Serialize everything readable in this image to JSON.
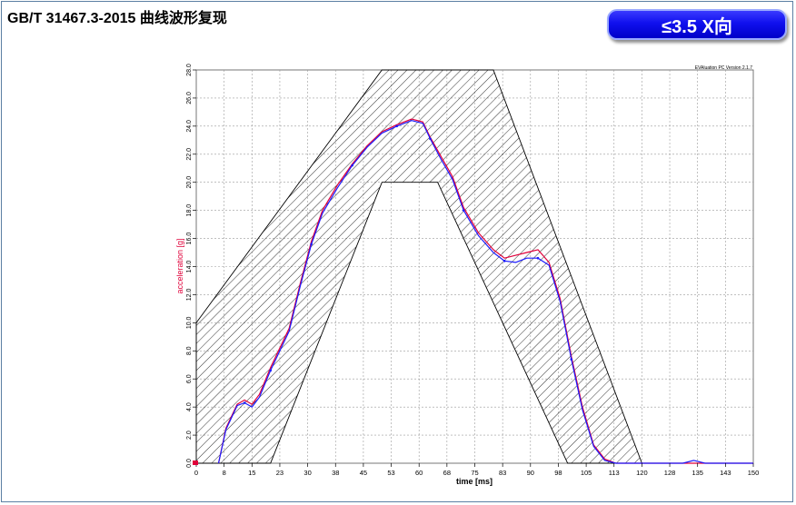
{
  "header": {
    "title": "GB/T 31467.3-2015 曲线波形复现",
    "badge": "≤3.5 X向"
  },
  "colors": {
    "frame_border": "#5b7fa3",
    "badge_blue": "#1010ee",
    "series_red": "#e0003a",
    "series_blue": "#1a1aff",
    "ylabel_red": "#e0003a"
  },
  "chart_data": {
    "type": "line",
    "title": "",
    "xlabel": "time [ms]",
    "ylabel": "acceleration [g]",
    "version_text": "EVAluation PC Version 2.1.7",
    "xlim": [
      0,
      150
    ],
    "ylim": [
      0,
      28
    ],
    "grid": true,
    "x_tick_values": [
      0,
      7.5,
      15,
      22.5,
      30,
      37.5,
      45,
      52.5,
      60,
      67.5,
      75,
      82.5,
      90,
      97.5,
      105,
      112.5,
      120,
      127.5,
      135,
      142.5,
      150
    ],
    "x_tick_labels": [
      "0",
      "8",
      "15",
      "23",
      "30",
      "38",
      "45",
      "53",
      "60",
      "68",
      "75",
      "83",
      "90",
      "98",
      "105",
      "113",
      "120",
      "128",
      "135",
      "143",
      "150"
    ],
    "y_tick_values": [
      0,
      2,
      4,
      6,
      8,
      10,
      12,
      14,
      16,
      18,
      20,
      22,
      24,
      26,
      28
    ],
    "y_tick_labels": [
      "0.0",
      "2.0",
      "4.0",
      "6.0",
      "8.0",
      "10.0",
      "12.0",
      "14.0",
      "16.0",
      "18.0",
      "20.0",
      "22.0",
      "24.0",
      "26.0",
      "28.0"
    ],
    "corridor_upper": [
      [
        0,
        10
      ],
      [
        50,
        28
      ],
      [
        80,
        28
      ],
      [
        120,
        0
      ]
    ],
    "corridor_lower": [
      [
        20,
        0
      ],
      [
        50,
        20
      ],
      [
        65,
        20
      ],
      [
        100,
        0
      ]
    ],
    "series": [
      {
        "color": "#e0003a",
        "points": [
          [
            6,
            0
          ],
          [
            8,
            2.5
          ],
          [
            11,
            4.2
          ],
          [
            13,
            4.5
          ],
          [
            15,
            4.2
          ],
          [
            17,
            4.9
          ],
          [
            20,
            6.8
          ],
          [
            25,
            9.6
          ],
          [
            28,
            12.8
          ],
          [
            31,
            15.8
          ],
          [
            34,
            18.0
          ],
          [
            38,
            19.8
          ],
          [
            42,
            21.3
          ],
          [
            46,
            22.6
          ],
          [
            50,
            23.6
          ],
          [
            54,
            24.1
          ],
          [
            58,
            24.5
          ],
          [
            61,
            24.3
          ],
          [
            63,
            23.2
          ],
          [
            66,
            21.8
          ],
          [
            69,
            20.4
          ],
          [
            72,
            18.2
          ],
          [
            76,
            16.4
          ],
          [
            80,
            15.2
          ],
          [
            83,
            14.6
          ],
          [
            86,
            14.8
          ],
          [
            89,
            15.0
          ],
          [
            92,
            15.2
          ],
          [
            95,
            14.3
          ],
          [
            98,
            11.7
          ],
          [
            101,
            7.6
          ],
          [
            104,
            4.0
          ],
          [
            107,
            1.3
          ],
          [
            110,
            0.3
          ],
          [
            113,
            0
          ],
          [
            150,
            0
          ]
        ]
      },
      {
        "color": "#1a1aff",
        "points": [
          [
            6,
            0
          ],
          [
            8,
            2.4
          ],
          [
            11,
            4.1
          ],
          [
            13,
            4.3
          ],
          [
            15,
            4.0
          ],
          [
            17,
            4.7
          ],
          [
            20,
            6.6
          ],
          [
            25,
            9.4
          ],
          [
            28,
            12.6
          ],
          [
            31,
            15.6
          ],
          [
            34,
            17.8
          ],
          [
            38,
            19.6
          ],
          [
            42,
            21.2
          ],
          [
            46,
            22.5
          ],
          [
            50,
            23.5
          ],
          [
            54,
            24.0
          ],
          [
            58,
            24.4
          ],
          [
            61,
            24.2
          ],
          [
            63,
            23.1
          ],
          [
            66,
            21.6
          ],
          [
            69,
            20.2
          ],
          [
            72,
            18.0
          ],
          [
            76,
            16.2
          ],
          [
            80,
            15.0
          ],
          [
            83,
            14.4
          ],
          [
            86,
            14.3
          ],
          [
            89,
            14.6
          ],
          [
            92,
            14.6
          ],
          [
            95,
            14.1
          ],
          [
            98,
            11.5
          ],
          [
            101,
            7.4
          ],
          [
            104,
            3.8
          ],
          [
            107,
            1.2
          ],
          [
            110,
            0.2
          ],
          [
            113,
            0
          ],
          [
            131,
            0
          ],
          [
            134,
            0.2
          ],
          [
            137,
            0
          ],
          [
            150,
            0
          ]
        ]
      }
    ]
  }
}
